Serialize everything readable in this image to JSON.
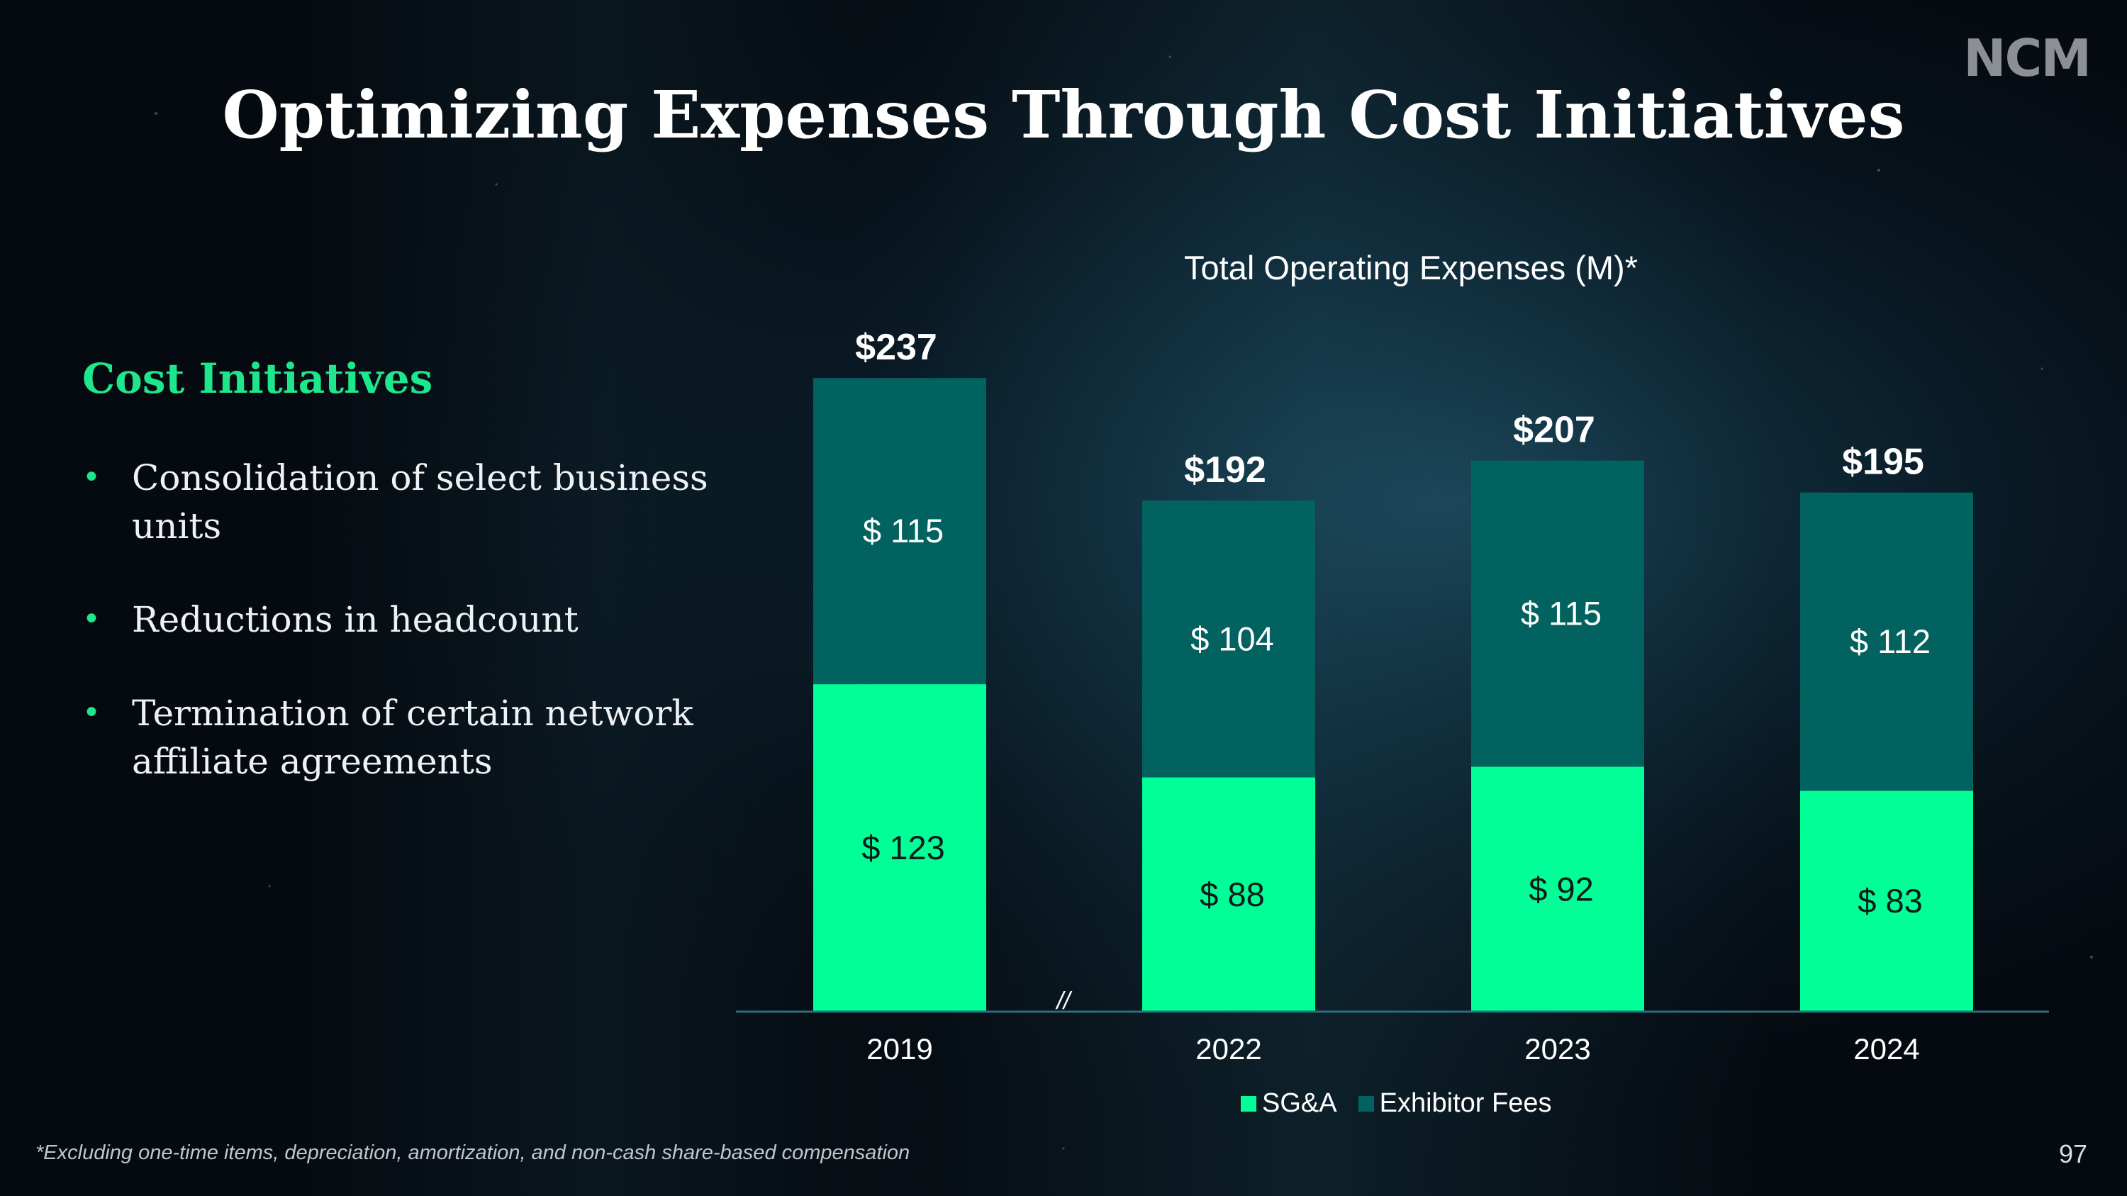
{
  "brand": {
    "logo_text": "NCM"
  },
  "slide": {
    "title": "Optimizing Expenses Through Cost Initiatives",
    "page_number": "97",
    "footnote": "*Excluding one-time items, depreciation, amortization, and non-cash share-based compensation"
  },
  "sidebar": {
    "heading": "Cost Initiatives",
    "bullets": [
      {
        "text": "Consolidation of select business units"
      },
      {
        "text": "Reductions in headcount"
      },
      {
        "text": "Termination of certain network affiliate agreements"
      }
    ]
  },
  "colors": {
    "sga": "#00ff96",
    "exhibitor_fees": "#02625f",
    "accent": "#1ee68c",
    "axis": "#2e6e7a"
  },
  "chart_data": {
    "type": "bar",
    "stacked": true,
    "title": "Total Operating Expenses (M)*",
    "categories": [
      "2019",
      "2022",
      "2023",
      "2024"
    ],
    "series": [
      {
        "name": "SG&A",
        "values": [
          123,
          88,
          92,
          83
        ],
        "labels": [
          "$ 123",
          "$ 88",
          "$ 92",
          "$ 83"
        ]
      },
      {
        "name": "Exhibitor Fees",
        "values": [
          115,
          104,
          115,
          112
        ],
        "labels": [
          "$ 115",
          "$ 104",
          "$ 115",
          "$ 112"
        ]
      }
    ],
    "totals": [
      237,
      192,
      207,
      195
    ],
    "total_labels": [
      "$237",
      "$192",
      "$207",
      "$195"
    ],
    "axis_break_marker": "//",
    "ylim": [
      0,
      237
    ],
    "legend_position": "bottom",
    "grid": false
  }
}
